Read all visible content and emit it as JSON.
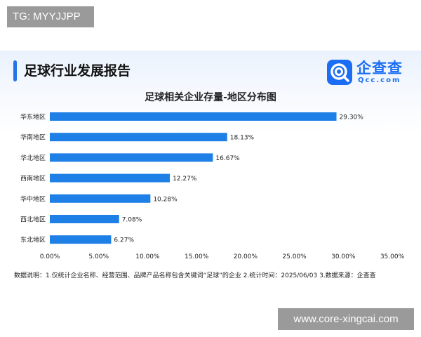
{
  "watermarks": {
    "top": "TG: MYYJJPP",
    "bottom": "www.core-xingcai.com"
  },
  "header": {
    "report_title": "足球行业发展报告",
    "logo_name": "企查查",
    "logo_sub": "Qcc.com"
  },
  "footnote": "数据说明：1.仅统计企业名称、经营范围、品牌产品名称包含关键词“足球”的企业   2.统计时间：2025/06/03   3.数据来源：企查查",
  "colors": {
    "bar": "#1e7fe6",
    "accent": "#2474e8",
    "logo": "#1b6ef3"
  },
  "chart_data": {
    "type": "bar",
    "orientation": "horizontal",
    "title": "足球相关企业存量-地区分布图",
    "categories": [
      "华东地区",
      "华南地区",
      "华北地区",
      "西南地区",
      "华中地区",
      "西北地区",
      "东北地区"
    ],
    "values": [
      29.3,
      18.13,
      16.67,
      12.27,
      10.28,
      7.08,
      6.27
    ],
    "value_labels": [
      "29.30%",
      "18.13%",
      "16.67%",
      "12.27%",
      "10.28%",
      "7.08%",
      "6.27%"
    ],
    "xlim": [
      0,
      35
    ],
    "xticks": [
      0,
      5,
      10,
      15,
      20,
      25,
      30,
      35
    ],
    "xtick_labels": [
      "0.00%",
      "5.00%",
      "10.00%",
      "15.00%",
      "20.00%",
      "25.00%",
      "30.00%",
      "35.00%"
    ],
    "grid": false,
    "legend": "none"
  }
}
